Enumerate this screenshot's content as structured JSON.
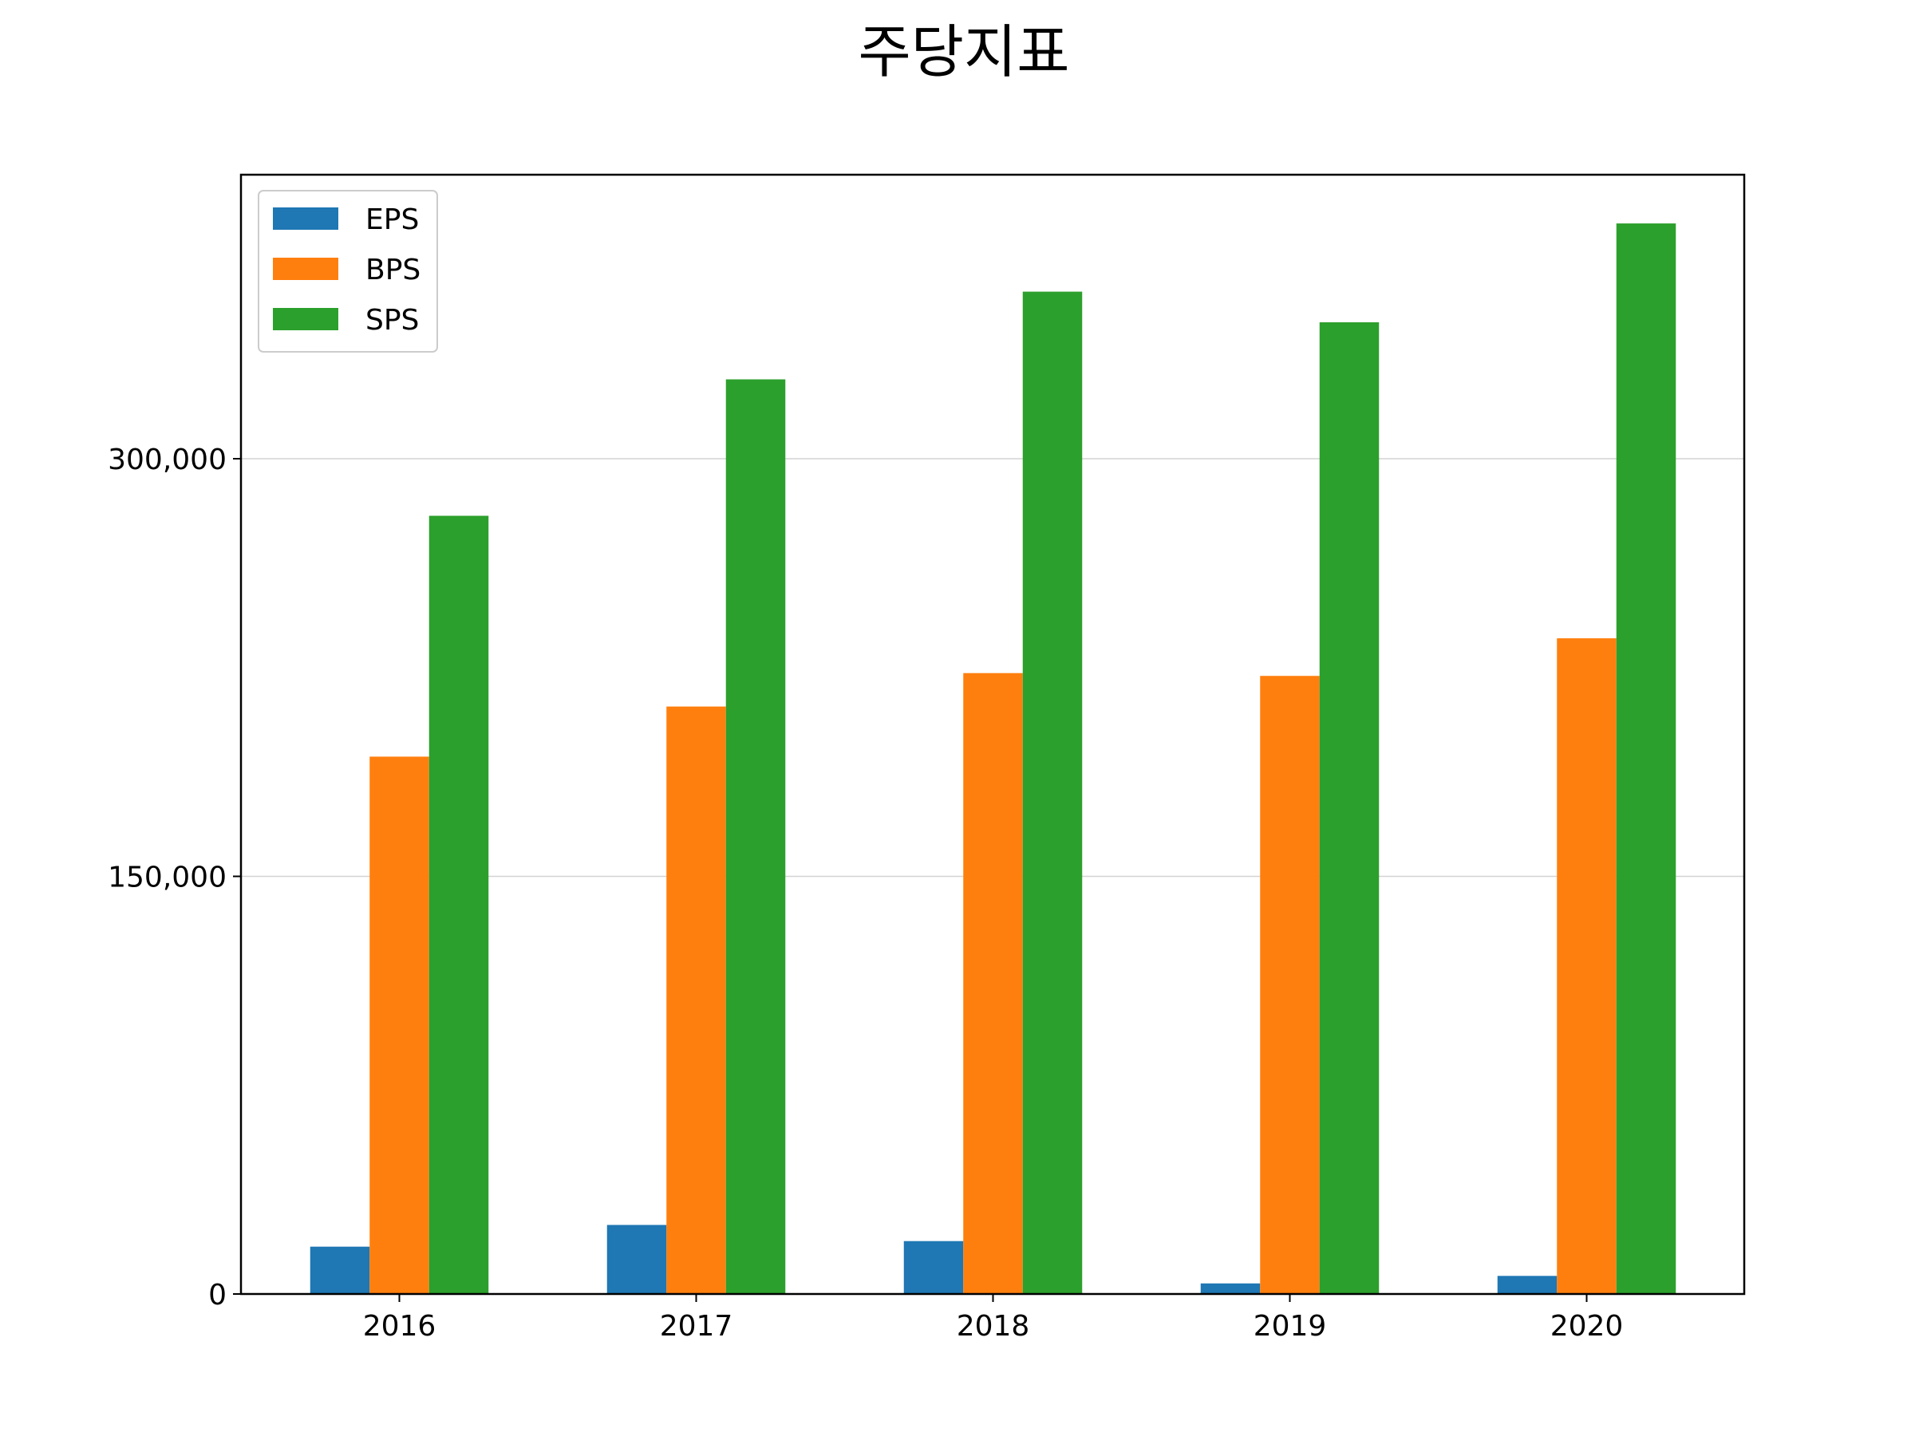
{
  "chart_data": {
    "type": "bar",
    "title": "주당지표",
    "xlabel": "",
    "ylabel": "",
    "categories": [
      "2016",
      "2017",
      "2018",
      "2019",
      "2020"
    ],
    "series": [
      {
        "name": "EPS",
        "color": "#1f77b4",
        "values": [
          17000,
          24800,
          19000,
          3800,
          6500
        ]
      },
      {
        "name": "BPS",
        "color": "#ff7f0e",
        "values": [
          193000,
          211000,
          223000,
          222000,
          235500
        ]
      },
      {
        "name": "SPS",
        "color": "#2ca02c",
        "values": [
          279500,
          328500,
          360000,
          349000,
          384500
        ]
      }
    ],
    "ylim": [
      0,
      402000
    ],
    "yticks": [
      0,
      150000,
      300000
    ],
    "ytick_labels": [
      "0",
      "150,000",
      "300,000"
    ],
    "grid": "horizontal",
    "legend_position": "upper-left"
  }
}
